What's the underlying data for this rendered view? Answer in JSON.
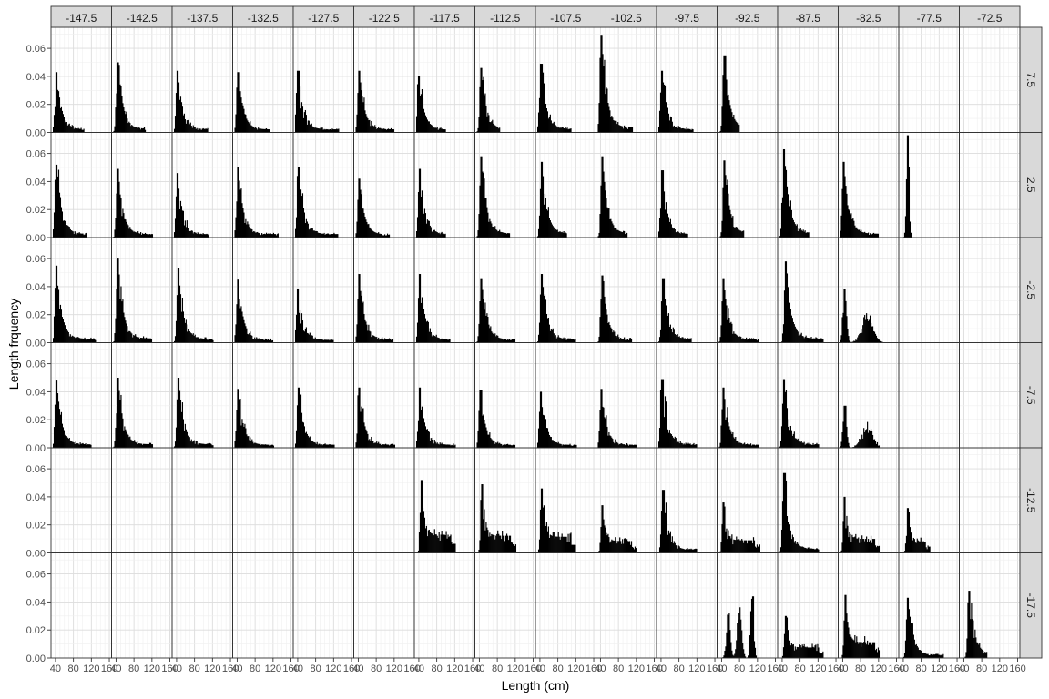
{
  "chart_data": {
    "type": "bar",
    "chart_kind": "faceted histogram grid",
    "xlabel": "Length (cm)",
    "ylabel": "Length frquency",
    "xlim": [
      30,
      165
    ],
    "x_ticks": [
      "40",
      "80",
      "120",
      "160"
    ],
    "ylim": [
      0,
      0.075
    ],
    "y_ticks": [
      "0.00",
      "0.02",
      "0.04",
      "0.06"
    ],
    "grid": true,
    "col_facets": [
      "-147.5",
      "-142.5",
      "-137.5",
      "-132.5",
      "-127.5",
      "-122.5",
      "-117.5",
      "-112.5",
      "-107.5",
      "-102.5",
      "-97.5",
      "-92.5",
      "-87.5",
      "-82.5",
      "-77.5",
      "-72.5"
    ],
    "row_facets": [
      "7.5",
      "2.5",
      "-2.5",
      "-7.5",
      "-12.5",
      "-17.5"
    ],
    "panels": [
      {
        "row": 0,
        "col": 0,
        "peak_x": 42,
        "peak_y": 0.043,
        "end_x": 104,
        "shape": "skew"
      },
      {
        "row": 0,
        "col": 1,
        "peak_x": 44,
        "peak_y": 0.05,
        "end_x": 105,
        "shape": "skew"
      },
      {
        "row": 0,
        "col": 2,
        "peak_x": 42,
        "peak_y": 0.044,
        "end_x": 110,
        "shape": "skew"
      },
      {
        "row": 0,
        "col": 3,
        "peak_x": 42,
        "peak_y": 0.043,
        "end_x": 112,
        "shape": "skew"
      },
      {
        "row": 0,
        "col": 4,
        "peak_x": 40,
        "peak_y": 0.044,
        "end_x": 132,
        "shape": "skew"
      },
      {
        "row": 0,
        "col": 5,
        "peak_x": 42,
        "peak_y": 0.044,
        "end_x": 120,
        "shape": "skew"
      },
      {
        "row": 0,
        "col": 6,
        "peak_x": 40,
        "peak_y": 0.04,
        "end_x": 100,
        "shape": "skew"
      },
      {
        "row": 0,
        "col": 7,
        "peak_x": 44,
        "peak_y": 0.046,
        "end_x": 85,
        "shape": "skew"
      },
      {
        "row": 0,
        "col": 8,
        "peak_x": 42,
        "peak_y": 0.049,
        "end_x": 110,
        "shape": "skew"
      },
      {
        "row": 0,
        "col": 9,
        "peak_x": 42,
        "peak_y": 0.069,
        "end_x": 112,
        "shape": "skew"
      },
      {
        "row": 0,
        "col": 10,
        "peak_x": 42,
        "peak_y": 0.044,
        "end_x": 112,
        "shape": "skew"
      },
      {
        "row": 0,
        "col": 11,
        "peak_x": 46,
        "peak_y": 0.055,
        "end_x": 80,
        "shape": "skew"
      },
      {
        "row": 1,
        "col": 0,
        "peak_x": 42,
        "peak_y": 0.052,
        "end_x": 110,
        "shape": "skew"
      },
      {
        "row": 1,
        "col": 1,
        "peak_x": 44,
        "peak_y": 0.049,
        "end_x": 122,
        "shape": "skew"
      },
      {
        "row": 1,
        "col": 2,
        "peak_x": 42,
        "peak_y": 0.046,
        "end_x": 112,
        "shape": "skew"
      },
      {
        "row": 1,
        "col": 3,
        "peak_x": 42,
        "peak_y": 0.05,
        "end_x": 132,
        "shape": "skew"
      },
      {
        "row": 1,
        "col": 4,
        "peak_x": 42,
        "peak_y": 0.05,
        "end_x": 130,
        "shape": "skew"
      },
      {
        "row": 1,
        "col": 5,
        "peak_x": 42,
        "peak_y": 0.042,
        "end_x": 110,
        "shape": "skew"
      },
      {
        "row": 1,
        "col": 6,
        "peak_x": 42,
        "peak_y": 0.049,
        "end_x": 100,
        "shape": "skew"
      },
      {
        "row": 1,
        "col": 7,
        "peak_x": 44,
        "peak_y": 0.058,
        "end_x": 108,
        "shape": "skew"
      },
      {
        "row": 1,
        "col": 8,
        "peak_x": 44,
        "peak_y": 0.054,
        "end_x": 100,
        "shape": "skew"
      },
      {
        "row": 1,
        "col": 9,
        "peak_x": 44,
        "peak_y": 0.058,
        "end_x": 100,
        "shape": "skew"
      },
      {
        "row": 1,
        "col": 10,
        "peak_x": 42,
        "peak_y": 0.048,
        "end_x": 100,
        "shape": "skew"
      },
      {
        "row": 1,
        "col": 11,
        "peak_x": 46,
        "peak_y": 0.055,
        "end_x": 90,
        "shape": "skew"
      },
      {
        "row": 1,
        "col": 12,
        "peak_x": 44,
        "peak_y": 0.063,
        "end_x": 100,
        "shape": "skew"
      },
      {
        "row": 1,
        "col": 13,
        "peak_x": 42,
        "peak_y": 0.054,
        "end_x": 120,
        "shape": "skew"
      },
      {
        "row": 1,
        "col": 14,
        "peak_x": 50,
        "peak_y": 0.073,
        "end_x": 72,
        "shape": "narrow"
      },
      {
        "row": 2,
        "col": 0,
        "peak_x": 42,
        "peak_y": 0.055,
        "end_x": 130,
        "shape": "skew"
      },
      {
        "row": 2,
        "col": 1,
        "peak_x": 44,
        "peak_y": 0.06,
        "end_x": 120,
        "shape": "skew"
      },
      {
        "row": 2,
        "col": 2,
        "peak_x": 44,
        "peak_y": 0.053,
        "end_x": 122,
        "shape": "skew"
      },
      {
        "row": 2,
        "col": 3,
        "peak_x": 42,
        "peak_y": 0.045,
        "end_x": 120,
        "shape": "skew"
      },
      {
        "row": 2,
        "col": 4,
        "peak_x": 40,
        "peak_y": 0.038,
        "end_x": 120,
        "shape": "skew"
      },
      {
        "row": 2,
        "col": 5,
        "peak_x": 42,
        "peak_y": 0.049,
        "end_x": 118,
        "shape": "skew"
      },
      {
        "row": 2,
        "col": 6,
        "peak_x": 42,
        "peak_y": 0.049,
        "end_x": 110,
        "shape": "skew"
      },
      {
        "row": 2,
        "col": 7,
        "peak_x": 44,
        "peak_y": 0.046,
        "end_x": 120,
        "shape": "skew"
      },
      {
        "row": 2,
        "col": 8,
        "peak_x": 44,
        "peak_y": 0.049,
        "end_x": 120,
        "shape": "skew"
      },
      {
        "row": 2,
        "col": 9,
        "peak_x": 44,
        "peak_y": 0.048,
        "end_x": 110,
        "shape": "skew"
      },
      {
        "row": 2,
        "col": 10,
        "peak_x": 44,
        "peak_y": 0.046,
        "end_x": 108,
        "shape": "skew"
      },
      {
        "row": 2,
        "col": 11,
        "peak_x": 44,
        "peak_y": 0.046,
        "end_x": 122,
        "shape": "skew"
      },
      {
        "row": 2,
        "col": 12,
        "peak_x": 48,
        "peak_y": 0.058,
        "end_x": 132,
        "shape": "skew"
      },
      {
        "row": 2,
        "col": 13,
        "peak_x": 44,
        "peak_y": 0.038,
        "end_x": 130,
        "shape": "bimodal"
      },
      {
        "row": 3,
        "col": 0,
        "peak_x": 42,
        "peak_y": 0.048,
        "end_x": 120,
        "shape": "skew"
      },
      {
        "row": 3,
        "col": 1,
        "peak_x": 44,
        "peak_y": 0.05,
        "end_x": 122,
        "shape": "skew"
      },
      {
        "row": 3,
        "col": 2,
        "peak_x": 44,
        "peak_y": 0.05,
        "end_x": 122,
        "shape": "skew"
      },
      {
        "row": 3,
        "col": 3,
        "peak_x": 42,
        "peak_y": 0.042,
        "end_x": 122,
        "shape": "skew"
      },
      {
        "row": 3,
        "col": 4,
        "peak_x": 42,
        "peak_y": 0.043,
        "end_x": 122,
        "shape": "skew"
      },
      {
        "row": 3,
        "col": 5,
        "peak_x": 42,
        "peak_y": 0.043,
        "end_x": 122,
        "shape": "skew"
      },
      {
        "row": 3,
        "col": 6,
        "peak_x": 42,
        "peak_y": 0.043,
        "end_x": 122,
        "shape": "skew"
      },
      {
        "row": 3,
        "col": 7,
        "peak_x": 42,
        "peak_y": 0.041,
        "end_x": 120,
        "shape": "skew"
      },
      {
        "row": 3,
        "col": 8,
        "peak_x": 42,
        "peak_y": 0.04,
        "end_x": 122,
        "shape": "skew"
      },
      {
        "row": 3,
        "col": 9,
        "peak_x": 42,
        "peak_y": 0.042,
        "end_x": 120,
        "shape": "skew"
      },
      {
        "row": 3,
        "col": 10,
        "peak_x": 42,
        "peak_y": 0.049,
        "end_x": 120,
        "shape": "skew"
      },
      {
        "row": 3,
        "col": 11,
        "peak_x": 44,
        "peak_y": 0.043,
        "end_x": 122,
        "shape": "skew"
      },
      {
        "row": 3,
        "col": 12,
        "peak_x": 44,
        "peak_y": 0.049,
        "end_x": 122,
        "shape": "skew"
      },
      {
        "row": 3,
        "col": 13,
        "peak_x": 44,
        "peak_y": 0.03,
        "end_x": 122,
        "shape": "bimodal"
      },
      {
        "row": 4,
        "col": 6,
        "peak_x": 46,
        "peak_y": 0.052,
        "end_x": 122,
        "shape": "flat"
      },
      {
        "row": 4,
        "col": 7,
        "peak_x": 46,
        "peak_y": 0.049,
        "end_x": 122,
        "shape": "flat"
      },
      {
        "row": 4,
        "col": 8,
        "peak_x": 44,
        "peak_y": 0.046,
        "end_x": 120,
        "shape": "flat"
      },
      {
        "row": 4,
        "col": 9,
        "peak_x": 44,
        "peak_y": 0.034,
        "end_x": 120,
        "shape": "flat"
      },
      {
        "row": 4,
        "col": 10,
        "peak_x": 44,
        "peak_y": 0.045,
        "end_x": 120,
        "shape": "skew"
      },
      {
        "row": 4,
        "col": 11,
        "peak_x": 44,
        "peak_y": 0.036,
        "end_x": 125,
        "shape": "flat"
      },
      {
        "row": 4,
        "col": 12,
        "peak_x": 44,
        "peak_y": 0.057,
        "end_x": 122,
        "shape": "skew"
      },
      {
        "row": 4,
        "col": 13,
        "peak_x": 44,
        "peak_y": 0.04,
        "end_x": 122,
        "shape": "flat"
      },
      {
        "row": 4,
        "col": 14,
        "peak_x": 50,
        "peak_y": 0.032,
        "end_x": 100,
        "shape": "flat"
      },
      {
        "row": 5,
        "col": 11,
        "peak_x": 110,
        "peak_y": 0.044,
        "end_x": 125,
        "shape": "multimodal"
      },
      {
        "row": 5,
        "col": 12,
        "peak_x": 48,
        "peak_y": 0.03,
        "end_x": 132,
        "shape": "flat"
      },
      {
        "row": 5,
        "col": 13,
        "peak_x": 46,
        "peak_y": 0.045,
        "end_x": 122,
        "shape": "flat"
      },
      {
        "row": 5,
        "col": 14,
        "peak_x": 50,
        "peak_y": 0.043,
        "end_x": 130,
        "shape": "skew"
      },
      {
        "row": 5,
        "col": 15,
        "peak_x": 52,
        "peak_y": 0.048,
        "end_x": 92,
        "shape": "skew"
      }
    ]
  }
}
